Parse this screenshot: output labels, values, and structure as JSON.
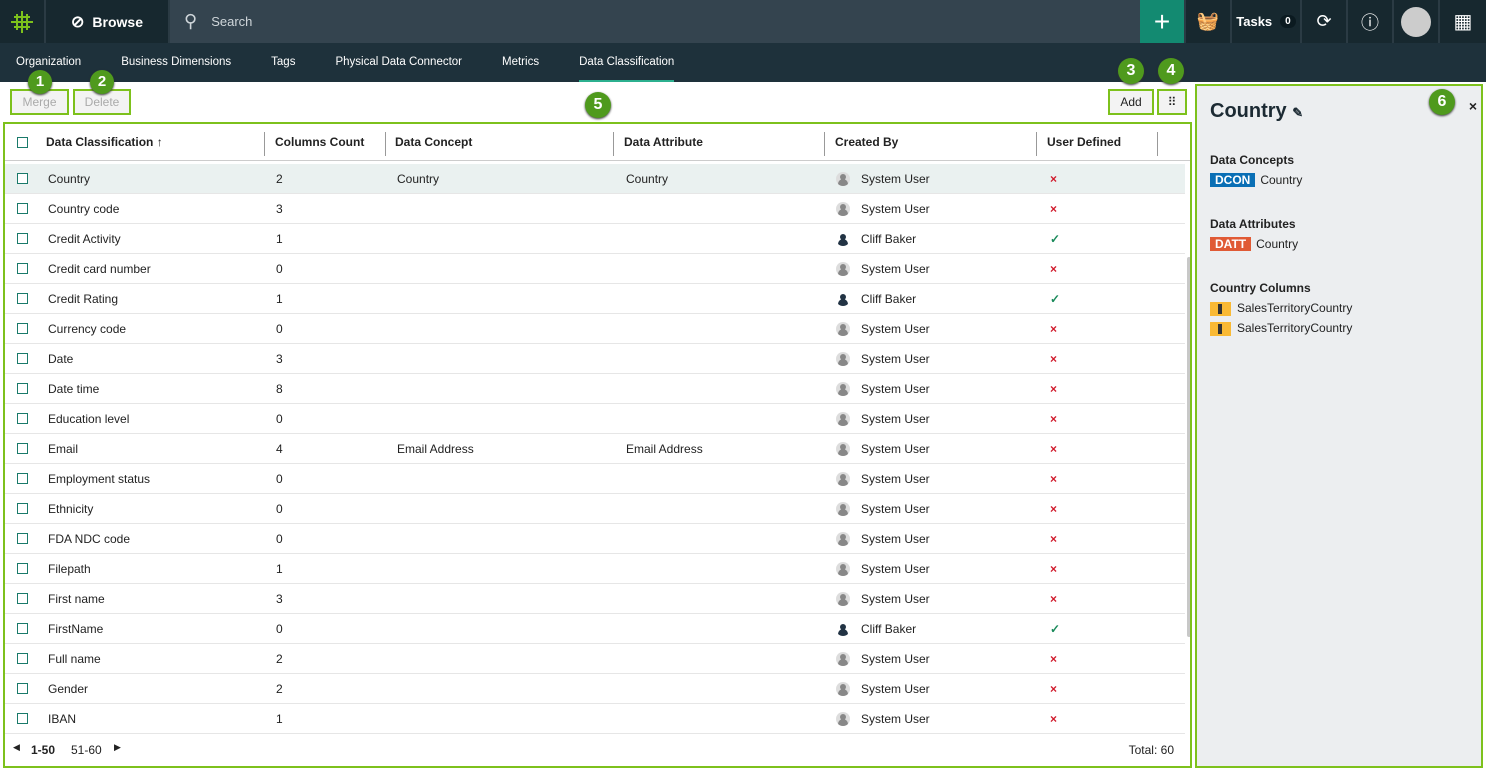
{
  "topbar": {
    "browse": "Browse",
    "search_placeholder": "Search",
    "tasks": "Tasks",
    "tasks_count": "0"
  },
  "subnav": [
    "Organization",
    "Business Dimensions",
    "Tags",
    "Physical Data Connector",
    "Metrics",
    "Data Classification"
  ],
  "toolbar": {
    "merge": "Merge",
    "delete": "Delete",
    "add": "Add"
  },
  "badges": [
    "1",
    "2",
    "3",
    "4",
    "5",
    "6"
  ],
  "table": {
    "columns": [
      "Data Classification",
      "Columns Count",
      "Data Concept",
      "Data Attribute",
      "Created By",
      "User Defined"
    ],
    "sort_icon": "arrow-up",
    "rows": [
      [
        "Country",
        "2",
        "Country",
        "Country",
        "System User",
        false
      ],
      [
        "Country code",
        "3",
        "",
        "",
        "System User",
        false
      ],
      [
        "Credit Activity",
        "1",
        "",
        "",
        "Cliff Baker",
        true
      ],
      [
        "Credit card number",
        "0",
        "",
        "",
        "System User",
        false
      ],
      [
        "Credit Rating",
        "1",
        "",
        "",
        "Cliff Baker",
        true
      ],
      [
        "Currency code",
        "0",
        "",
        "",
        "System User",
        false
      ],
      [
        "Date",
        "3",
        "",
        "",
        "System User",
        false
      ],
      [
        "Date time",
        "8",
        "",
        "",
        "System User",
        false
      ],
      [
        "Education level",
        "0",
        "",
        "",
        "System User",
        false
      ],
      [
        "Email",
        "4",
        "Email Address",
        "Email Address",
        "System User",
        false
      ],
      [
        "Employment status",
        "0",
        "",
        "",
        "System User",
        false
      ],
      [
        "Ethnicity",
        "0",
        "",
        "",
        "System User",
        false
      ],
      [
        "FDA NDC code",
        "0",
        "",
        "",
        "System User",
        false
      ],
      [
        "Filepath",
        "1",
        "",
        "",
        "System User",
        false
      ],
      [
        "First name",
        "3",
        "",
        "",
        "System User",
        false
      ],
      [
        "FirstName",
        "0",
        "",
        "",
        "Cliff Baker",
        true
      ],
      [
        "Full name",
        "2",
        "",
        "",
        "System User",
        false
      ],
      [
        "Gender",
        "2",
        "",
        "",
        "System User",
        false
      ],
      [
        "IBAN",
        "1",
        "",
        "",
        "System User",
        false
      ]
    ],
    "selected_row": 0,
    "pagination": {
      "current": "1-50",
      "next": "51-60",
      "total": "Total: 60"
    }
  },
  "panel": {
    "title": "Country",
    "concepts_label": "Data Concepts",
    "concept_tag": "DCON",
    "concept": "Country",
    "attributes_label": "Data Attributes",
    "attribute_tag": "DATT",
    "attribute": "Country",
    "columns_label": "Country Columns",
    "columns": [
      "SalesTerritoryCountry",
      "SalesTerritoryCountry"
    ]
  },
  "colors": {
    "accent": "#7dc11c",
    "dcon": "#0a6fb5",
    "datt": "#e05a35",
    "plus": "#138a71"
  }
}
